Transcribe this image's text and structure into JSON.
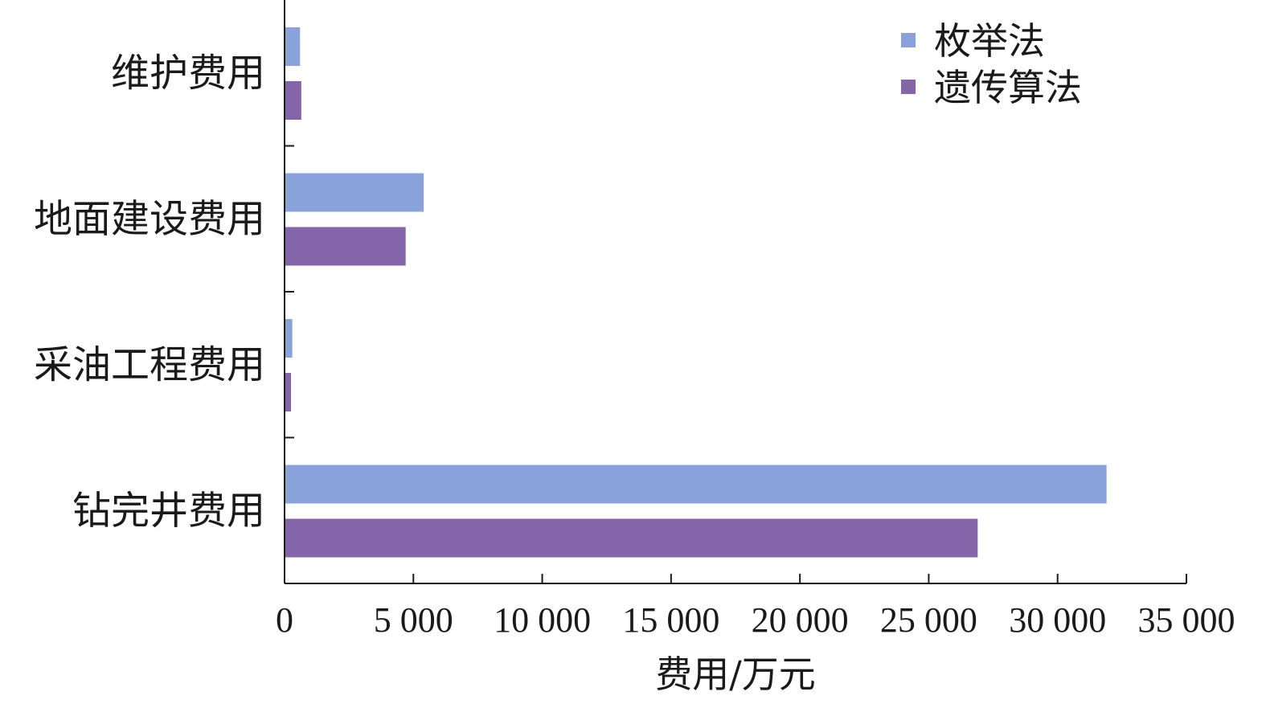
{
  "chart_data": {
    "type": "bar",
    "orientation": "horizontal",
    "title": "",
    "xlabel": "费用/万元",
    "ylabel": "",
    "categories": [
      "维护费用",
      "地面建设费用",
      "采油工程费用",
      "钻完井费用"
    ],
    "series": [
      {
        "name": "枚举法",
        "values": [
          600,
          5400,
          300,
          31900
        ],
        "color": "#8aa2dc"
      },
      {
        "name": "遗传算法",
        "values": [
          650,
          4700,
          250,
          26900
        ],
        "color": "#8465aa"
      }
    ],
    "xlim": [
      0,
      35000
    ],
    "xticks": [
      0,
      5000,
      10000,
      15000,
      20000,
      25000,
      30000,
      35000
    ],
    "xtick_labels": [
      "0",
      "5 000",
      "10 000",
      "15 000",
      "20 000",
      "25 000",
      "30 000",
      "35 000"
    ],
    "grid": false,
    "legend_position": "top-right"
  }
}
